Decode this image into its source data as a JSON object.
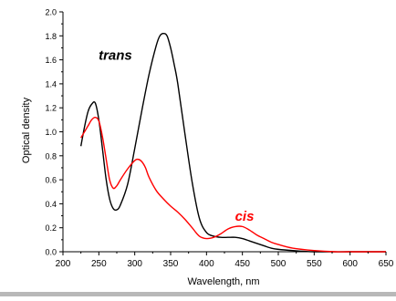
{
  "chart_data": {
    "type": "line",
    "title": "",
    "xlabel": "Wavelength, nm",
    "ylabel": "Optical density",
    "xlim": [
      200,
      650
    ],
    "ylim": [
      0.0,
      2.0
    ],
    "x_ticks": [
      200,
      250,
      300,
      350,
      400,
      450,
      500,
      550,
      600,
      650
    ],
    "y_ticks": [
      0.0,
      0.2,
      0.4,
      0.6,
      0.8,
      1.0,
      1.2,
      1.4,
      1.6,
      1.8,
      2.0
    ],
    "x_tick_labels": [
      "200",
      "250",
      "300",
      "350",
      "400",
      "450",
      "500",
      "550",
      "600",
      "650"
    ],
    "y_tick_labels": [
      "0.0",
      "0.2",
      "0.4",
      "0.6",
      "0.8",
      "1.0",
      "1.2",
      "1.4",
      "1.6",
      "1.8",
      "2.0"
    ],
    "grid": false,
    "series": [
      {
        "name": "trans",
        "color": "#000000",
        "x": [
          225,
          230,
          235,
          240,
          245,
          250,
          255,
          260,
          265,
          270,
          275,
          280,
          290,
          300,
          310,
          320,
          330,
          335,
          340,
          345,
          350,
          355,
          360,
          370,
          380,
          390,
          400,
          410,
          420,
          430,
          440,
          450,
          460,
          470,
          480,
          490,
          500,
          520,
          550,
          600,
          650
        ],
        "y": [
          0.88,
          1.04,
          1.17,
          1.23,
          1.24,
          1.1,
          0.86,
          0.61,
          0.44,
          0.36,
          0.35,
          0.39,
          0.56,
          0.86,
          1.18,
          1.48,
          1.72,
          1.8,
          1.82,
          1.8,
          1.7,
          1.56,
          1.4,
          0.98,
          0.58,
          0.28,
          0.16,
          0.13,
          0.12,
          0.12,
          0.12,
          0.11,
          0.09,
          0.07,
          0.05,
          0.03,
          0.02,
          0.01,
          0.0,
          0.0,
          0.0
        ]
      },
      {
        "name": "cis",
        "color": "#ff0000",
        "x": [
          225,
          230,
          235,
          240,
          245,
          250,
          255,
          260,
          265,
          270,
          275,
          280,
          290,
          300,
          305,
          310,
          315,
          320,
          330,
          340,
          350,
          360,
          370,
          380,
          390,
          400,
          410,
          420,
          430,
          440,
          450,
          460,
          470,
          480,
          490,
          500,
          520,
          550,
          580,
          600,
          650
        ],
        "y": [
          0.95,
          1.0,
          1.05,
          1.1,
          1.12,
          1.09,
          0.96,
          0.78,
          0.6,
          0.53,
          0.55,
          0.6,
          0.69,
          0.76,
          0.77,
          0.75,
          0.7,
          0.62,
          0.51,
          0.44,
          0.38,
          0.33,
          0.27,
          0.2,
          0.13,
          0.11,
          0.12,
          0.15,
          0.19,
          0.21,
          0.21,
          0.18,
          0.14,
          0.11,
          0.08,
          0.06,
          0.03,
          0.01,
          0.0,
          0.0,
          0.0
        ]
      }
    ],
    "annotations": [
      {
        "text": "trans",
        "color": "#000000",
        "x": 273,
        "y": 1.6
      },
      {
        "text": "cis",
        "color": "#ff0000",
        "x": 453,
        "y": 0.26
      }
    ]
  }
}
